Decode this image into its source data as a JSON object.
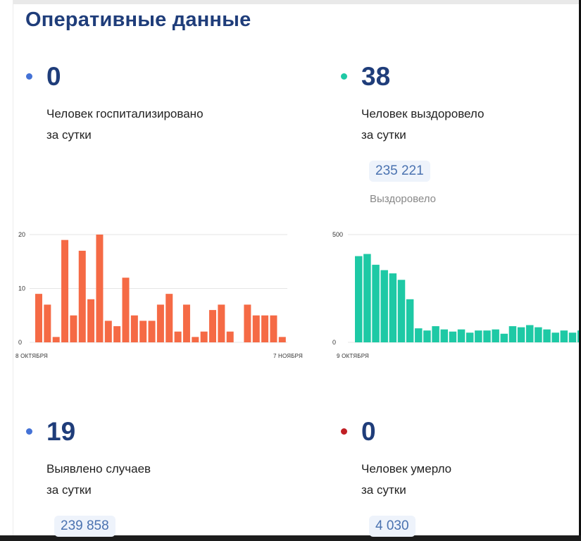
{
  "header": {
    "title": "Оперативные данные"
  },
  "colors": {
    "title": "#1f3d7a",
    "dot_hospitalized": "#4472d6",
    "dot_recovered": "#1ec9a5",
    "dot_cases": "#4472d6",
    "dot_died": "#c01f24",
    "bar_hospitalized": "#f56a45",
    "bar_recovered": "#1ec9a5"
  },
  "hospitalized": {
    "value": "0",
    "label_line1": "Человек госпитализировано",
    "label_line2": "за сутки"
  },
  "recovered": {
    "value": "38",
    "label_line1": "Человек выздоровело",
    "label_line2": "за сутки",
    "total": "235 221",
    "total_label": "Выздоровело"
  },
  "cases": {
    "value": "19",
    "label_line1": "Выявлено случаев",
    "label_line2": "за сутки",
    "total": "239 858"
  },
  "died": {
    "value": "0",
    "label_line1": "Человек умерло",
    "label_line2": "за сутки",
    "total": "4 030"
  },
  "chart_data": [
    {
      "type": "bar",
      "ylim": [
        0,
        20
      ],
      "yticks": [
        "0",
        "10",
        "20"
      ],
      "x_start": "8 ОКТЯБРЯ",
      "x_end": "7 НОЯБРЯ",
      "values": [
        9,
        7,
        1,
        19,
        5,
        17,
        8,
        20,
        4,
        3,
        12,
        5,
        4,
        4,
        7,
        9,
        2,
        7,
        1,
        2,
        6,
        7,
        2,
        0,
        7,
        5,
        5,
        5,
        1
      ],
      "grid": true
    },
    {
      "type": "bar",
      "ylim": [
        0,
        500
      ],
      "yticks": [
        "0",
        "500"
      ],
      "x_start": "9 ОКТЯБРЯ",
      "values": [
        400,
        410,
        360,
        335,
        320,
        290,
        200,
        65,
        55,
        75,
        60,
        50,
        60,
        45,
        55,
        55,
        60,
        40,
        75,
        70,
        80,
        70,
        60,
        45,
        55,
        45,
        55,
        40
      ],
      "grid": true
    }
  ]
}
